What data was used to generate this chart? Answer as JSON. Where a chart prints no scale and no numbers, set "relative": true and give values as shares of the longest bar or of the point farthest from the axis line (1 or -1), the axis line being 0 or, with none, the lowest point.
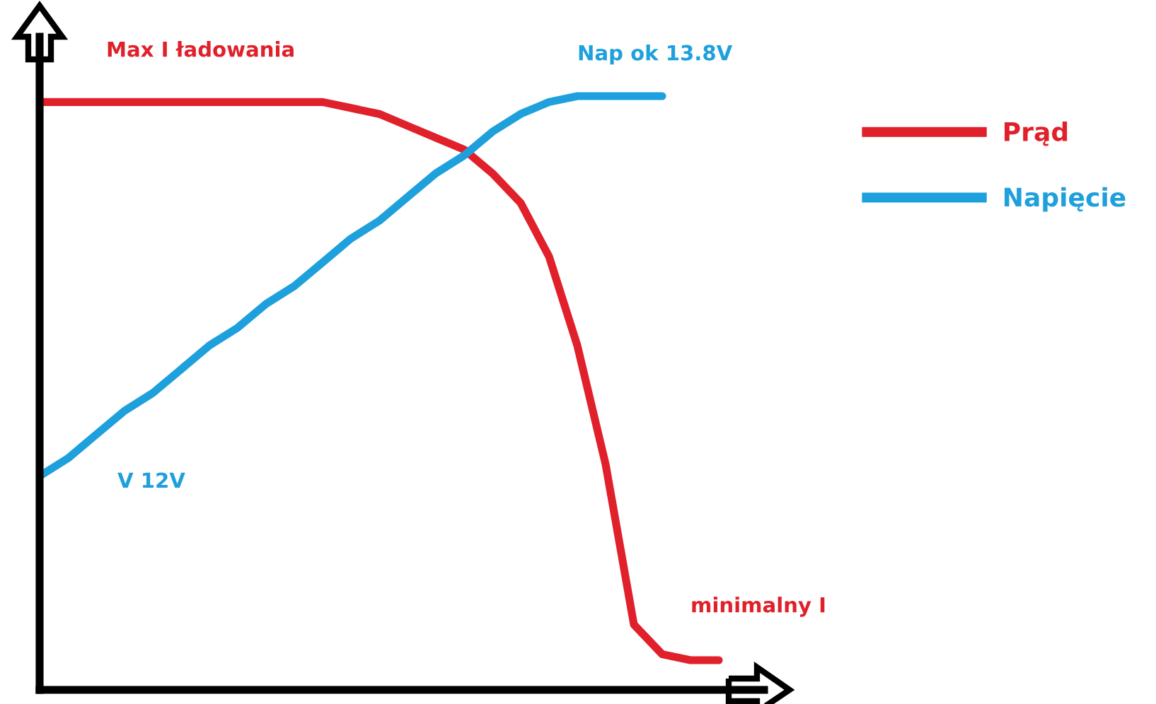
{
  "chart_data": {
    "type": "line",
    "relative": true,
    "categories": [
      null,
      null,
      null,
      null,
      null,
      null,
      null,
      null,
      null,
      null,
      null,
      null,
      null,
      null,
      null,
      null,
      null,
      null,
      null,
      null,
      null,
      null,
      null,
      null,
      null
    ],
    "series": [
      {
        "name": "Prąd",
        "color": "#e0202a",
        "values": [
          0.99,
          0.99,
          0.99,
          0.99,
          0.99,
          0.99,
          0.99,
          0.99,
          0.99,
          0.99,
          0.99,
          0.98,
          0.97,
          0.95,
          0.93,
          0.91,
          0.87,
          0.82,
          0.73,
          0.58,
          0.38,
          0.11,
          0.06,
          0.05,
          0.05
        ]
      },
      {
        "name": "Napięcie",
        "color": "#1ea0dc",
        "values": [
          0.36,
          0.39,
          0.43,
          0.47,
          0.5,
          0.54,
          0.58,
          0.61,
          0.65,
          0.68,
          0.72,
          0.76,
          0.79,
          0.83,
          0.87,
          0.9,
          0.94,
          0.97,
          0.99,
          1.0,
          1.0,
          1.0,
          1.0,
          null,
          null
        ]
      }
    ],
    "annotations": [
      "Max I ładowania",
      "Nap ok 13.8V",
      "V 12V",
      "minimalny I"
    ],
    "legend": "right",
    "grid": false,
    "marker": "none",
    "line_style": "solid"
  }
}
